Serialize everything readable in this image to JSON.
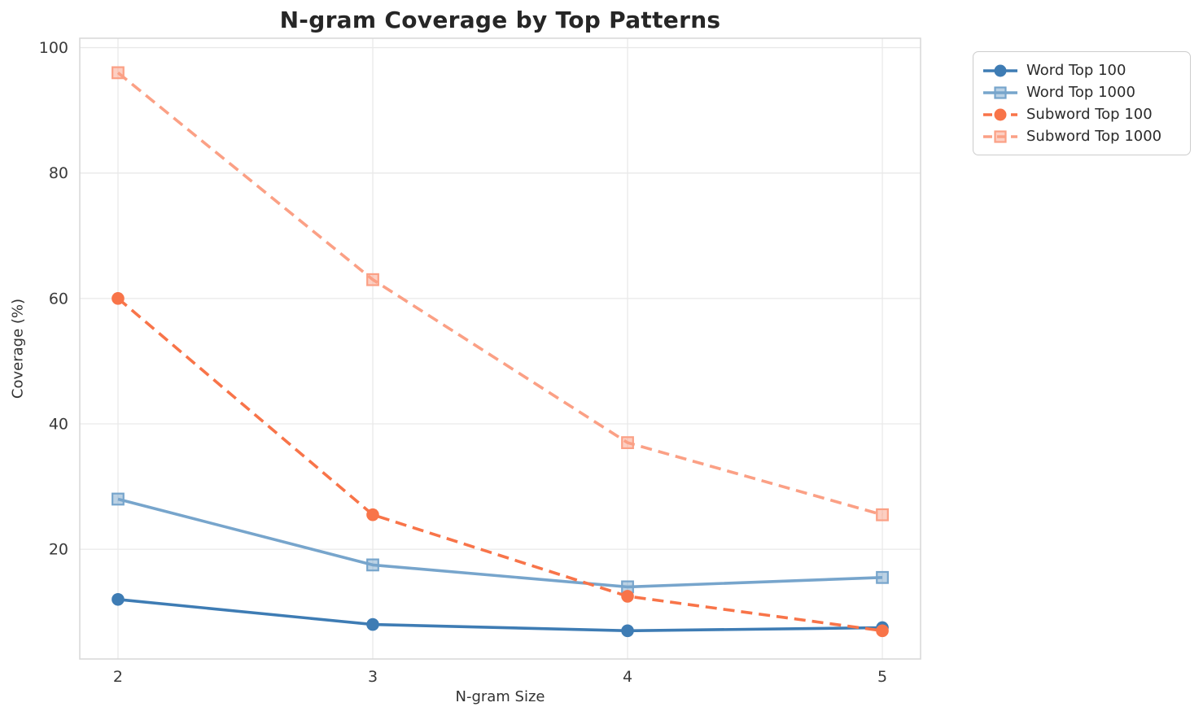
{
  "figure": {
    "title": "N-gram Coverage by Top Patterns"
  },
  "chart_data": {
    "type": "line",
    "title": "N-gram Coverage by Top Patterns",
    "xlabel": "N-gram Size",
    "ylabel": "Coverage (%)",
    "x": [
      2,
      3,
      4,
      5
    ],
    "xticks": [
      "2",
      "3",
      "4",
      "5"
    ],
    "yticks": [
      "20",
      "40",
      "60",
      "80",
      "100"
    ],
    "xlim": [
      1.85,
      5.15
    ],
    "ylim": [
      2.5,
      101.5
    ],
    "grid": true,
    "legend": {
      "position": "upper-right",
      "entries": [
        "Word Top 100",
        "Word Top 1000",
        "Subword Top 100",
        "Subword Top 1000"
      ]
    },
    "series": [
      {
        "name": "Word Top 100",
        "marker": "circle",
        "linestyle": "solid",
        "color": "#3E7CB4",
        "values": [
          12,
          8,
          7,
          7.5
        ]
      },
      {
        "name": "Word Top 1000",
        "marker": "square",
        "linestyle": "solid",
        "color": "#77A5CC",
        "values": [
          28,
          17.5,
          14,
          15.5
        ]
      },
      {
        "name": "Subword Top 100",
        "marker": "circle",
        "linestyle": "dashed",
        "color": "#F87449",
        "values": [
          60,
          25.5,
          12.5,
          7
        ]
      },
      {
        "name": "Subword Top 1000",
        "marker": "square",
        "linestyle": "dashed",
        "color": "#FBA085",
        "values": [
          96,
          63,
          37,
          25.5
        ]
      }
    ],
    "colors": {
      "background": "#ffffff",
      "grid": "#e9e9e9",
      "spine": "#d7d7d7",
      "title_text": "#262626",
      "tick_text": "#3a3a3a",
      "axis_label_text": "#333333",
      "legend_border": "#cccccc"
    }
  }
}
